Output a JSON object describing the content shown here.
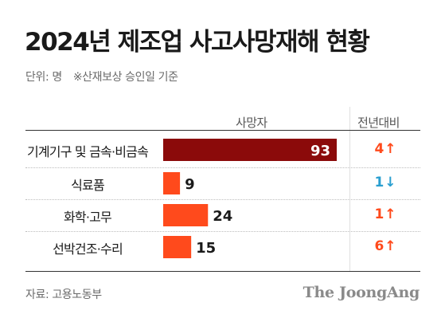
{
  "title": "2024년 제조업 사고사망재해 현황",
  "subtitle": {
    "unit": "단위: 명",
    "note": "※산재보상 승인일 기준"
  },
  "columns": {
    "value": "사망자",
    "change": "전년대비"
  },
  "chart_data": {
    "type": "bar",
    "orientation": "horizontal",
    "categories": [
      "기계기구 및 금속·비금속",
      "식료품",
      "화학·고무",
      "선박건조·수리"
    ],
    "values": [
      93,
      9,
      24,
      15
    ],
    "value_labels": [
      "93",
      "9",
      "24",
      "15"
    ],
    "change_vs_prev_year": [
      {
        "value": 4,
        "label": "4",
        "direction": "up"
      },
      {
        "value": -1,
        "label": "1",
        "direction": "down"
      },
      {
        "value": 1,
        "label": "1",
        "direction": "up"
      },
      {
        "value": 6,
        "label": "6",
        "direction": "up"
      }
    ],
    "xlim": [
      0,
      93
    ],
    "colors": {
      "highlight": "#8b0a0a",
      "bar": "#ff4a1c",
      "up": "#ff4a1c",
      "down": "#2a9fd0"
    }
  },
  "source": "자료: 고용노동부",
  "brand": "The JoongAng"
}
